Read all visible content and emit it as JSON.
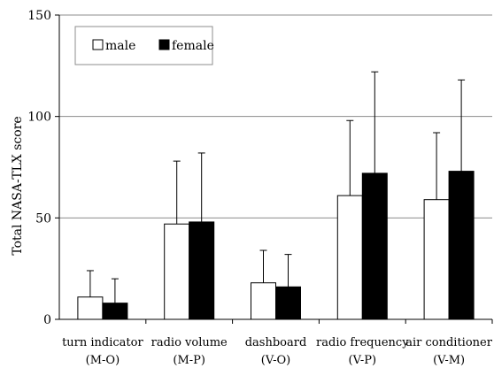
{
  "chart_data": {
    "type": "bar",
    "title": "",
    "xlabel": "",
    "ylabel": "Total NASA-TLX score",
    "ylim": [
      0,
      150
    ],
    "yticks": [
      0,
      50,
      100,
      150
    ],
    "grid": true,
    "legend_position": "top-left",
    "categories": [
      [
        "turn indicator",
        "(M-O)"
      ],
      [
        "radio volume",
        "(M-P)"
      ],
      [
        "dashboard",
        "(V-O)"
      ],
      [
        "radio frequency",
        "(V-P)"
      ],
      [
        "air conditioner",
        "(V-M)"
      ]
    ],
    "series": [
      {
        "name": "male",
        "color": "#ffffff",
        "values": [
          11,
          47,
          18,
          61,
          59
        ],
        "error_upper": [
          24,
          78,
          34,
          98,
          92
        ]
      },
      {
        "name": "female",
        "color": "#000000",
        "values": [
          8,
          48,
          16,
          72,
          73
        ],
        "error_upper": [
          20,
          82,
          32,
          122,
          118
        ]
      }
    ]
  }
}
